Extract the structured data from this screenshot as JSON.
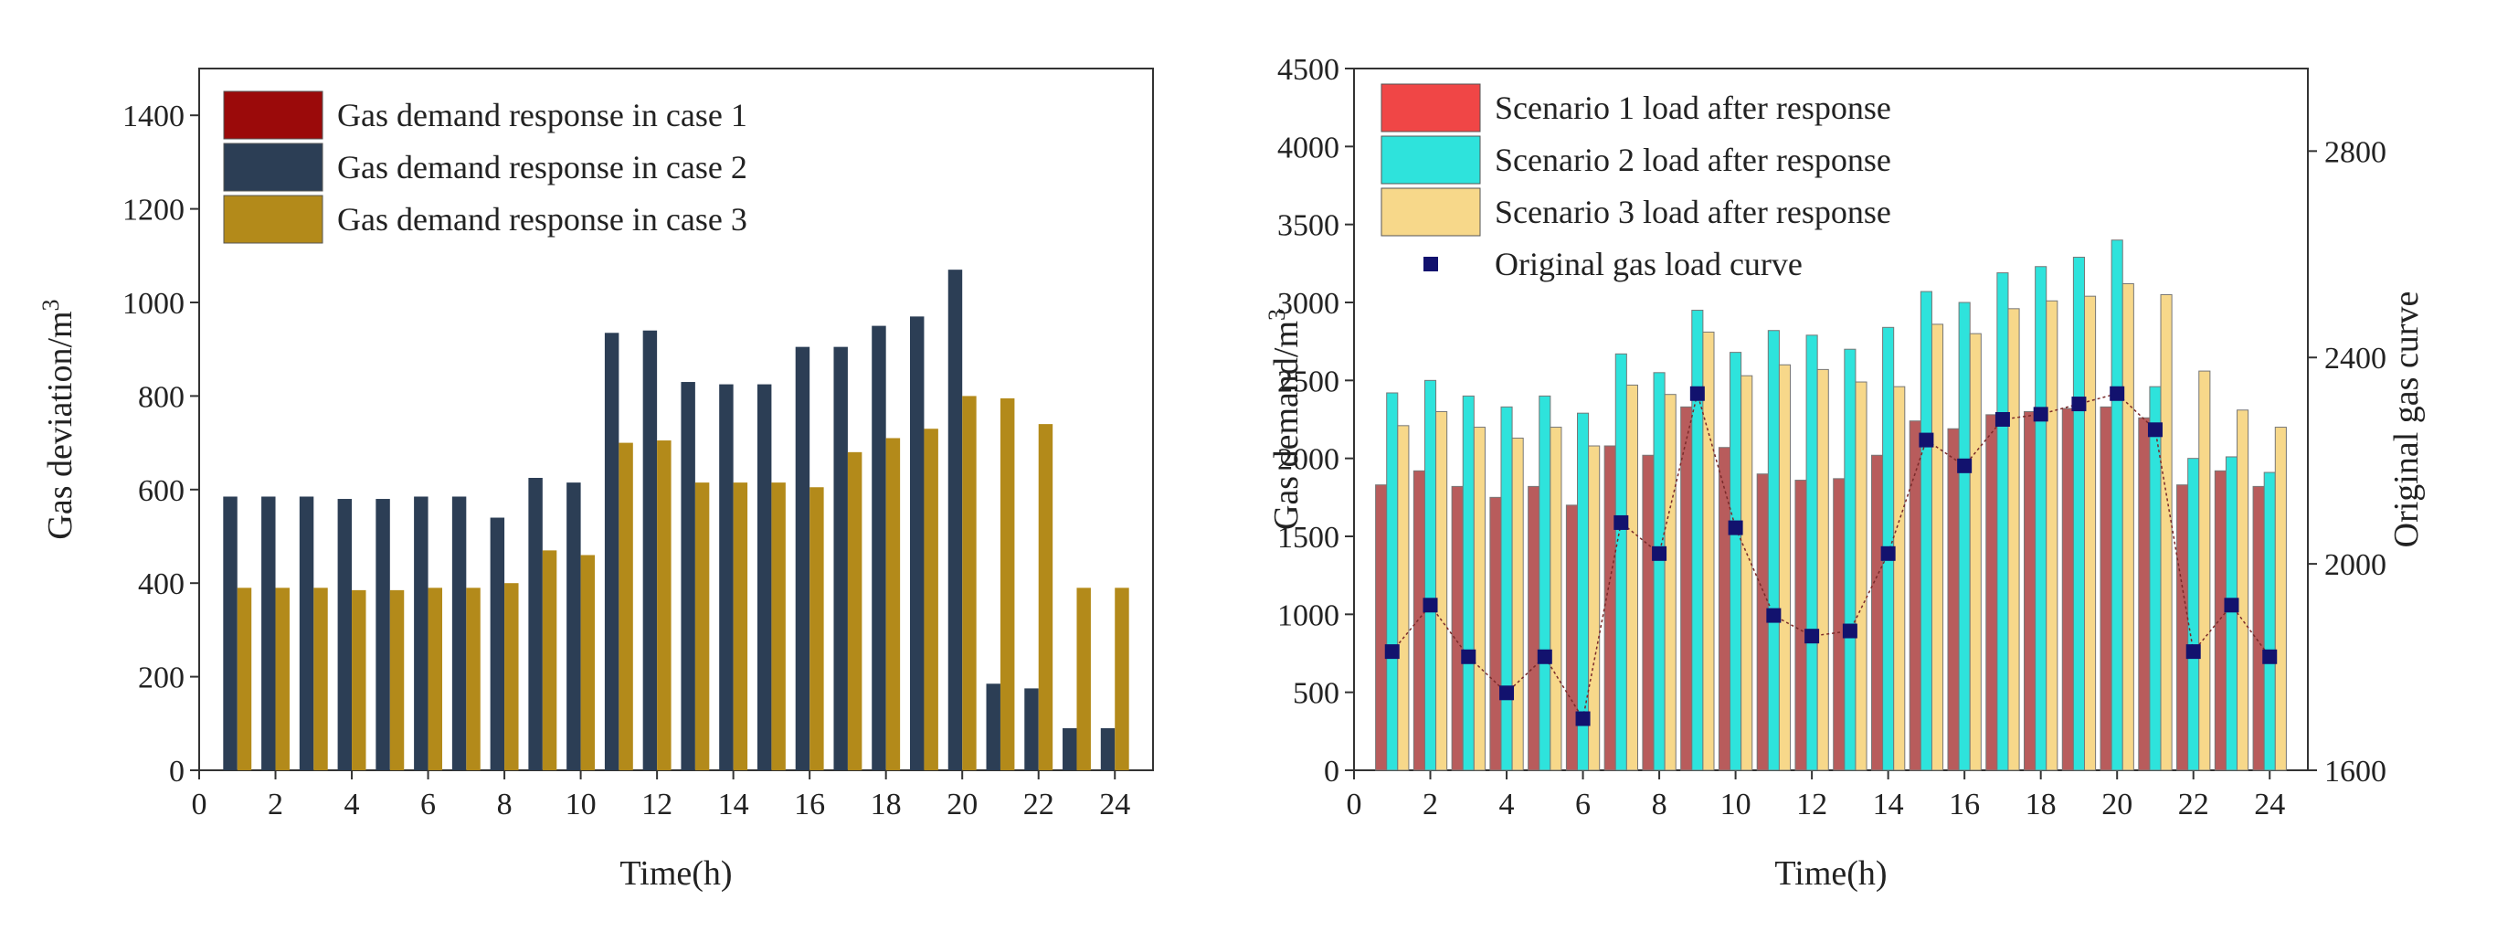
{
  "chart_data": [
    {
      "type": "bar",
      "title": "",
      "xlabel": "Time(h)",
      "ylabel": "Gas deviation/m",
      "ylabel_superscript": "3",
      "xlim": [
        0,
        25
      ],
      "ylim": [
        0,
        1500
      ],
      "x_ticks": [
        "0",
        "2",
        "4",
        "6",
        "8",
        "10",
        "12",
        "14",
        "16",
        "18",
        "20",
        "22",
        "24"
      ],
      "y_ticks": [
        "0",
        "200",
        "400",
        "600",
        "800",
        "1000",
        "1200",
        "1400"
      ],
      "categories": [
        1,
        2,
        3,
        4,
        5,
        6,
        7,
        8,
        9,
        10,
        11,
        12,
        13,
        14,
        15,
        16,
        17,
        18,
        19,
        20,
        21,
        22,
        23,
        24
      ],
      "series": [
        {
          "name": "Gas demand response in case 1",
          "color": "#9b0a0a",
          "values": [
            0,
            0,
            0,
            0,
            0,
            0,
            0,
            0,
            0,
            0,
            0,
            0,
            0,
            0,
            0,
            0,
            0,
            0,
            0,
            0,
            0,
            0,
            0,
            0
          ]
        },
        {
          "name": "Gas demand response in case 2",
          "color": "#2c3e55",
          "values": [
            585,
            585,
            585,
            580,
            580,
            585,
            585,
            540,
            625,
            615,
            935,
            940,
            830,
            825,
            825,
            905,
            905,
            950,
            970,
            1070,
            185,
            175,
            90,
            90
          ]
        },
        {
          "name": "Gas demand response in case 3",
          "color": "#b38a1a",
          "values": [
            390,
            390,
            390,
            385,
            385,
            390,
            390,
            400,
            470,
            460,
            700,
            705,
            615,
            615,
            615,
            605,
            680,
            710,
            730,
            800,
            795,
            740,
            390,
            390
          ]
        }
      ],
      "legend": "top-left"
    },
    {
      "type": "bar",
      "title": "",
      "xlabel": "Time(h)",
      "ylabel": "Gas demand/m",
      "ylabel_superscript": "3",
      "y2label": "Original gas curve",
      "xlim": [
        0,
        25
      ],
      "ylim": [
        0,
        4500
      ],
      "y2lim": [
        1600,
        2960
      ],
      "x_ticks": [
        "0",
        "2",
        "4",
        "6",
        "8",
        "10",
        "12",
        "14",
        "16",
        "18",
        "20",
        "22",
        "24"
      ],
      "y_ticks": [
        "0",
        "500",
        "1000",
        "1500",
        "2000",
        "2500",
        "3000",
        "3500",
        "4000",
        "4500"
      ],
      "y2_ticks": [
        "1600",
        "2000",
        "2400",
        "2800"
      ],
      "categories": [
        1,
        2,
        3,
        4,
        5,
        6,
        7,
        8,
        9,
        10,
        11,
        12,
        13,
        14,
        15,
        16,
        17,
        18,
        19,
        20,
        21,
        22,
        23,
        24
      ],
      "series": [
        {
          "name": "Scenario 1 load after response",
          "color": "#b85c5c",
          "legend_color": "#f04646",
          "values": [
            1830,
            1920,
            1820,
            1750,
            1820,
            1700,
            2080,
            2020,
            2330,
            2070,
            1900,
            1860,
            1870,
            2020,
            2240,
            2190,
            2280,
            2300,
            2320,
            2330,
            2260,
            1830,
            1920,
            1820
          ]
        },
        {
          "name": "Scenario 2 load after response",
          "color": "#2ee3dc",
          "values": [
            2420,
            2500,
            2400,
            2330,
            2400,
            2290,
            2670,
            2550,
            2950,
            2680,
            2820,
            2790,
            2700,
            2840,
            3070,
            3000,
            3190,
            3230,
            3290,
            3400,
            2460,
            2000,
            2010,
            1910
          ]
        },
        {
          "name": "Scenario 3 load after response",
          "color": "#f7d88a",
          "values": [
            2210,
            2300,
            2200,
            2130,
            2200,
            2080,
            2470,
            2410,
            2810,
            2530,
            2600,
            2570,
            2490,
            2460,
            2860,
            2800,
            2960,
            3010,
            3040,
            3120,
            3050,
            2560,
            2310,
            2200
          ]
        },
        {
          "name": "Original gas load curve",
          "color": "#12126e",
          "axis": "right",
          "marker": "square",
          "values": [
            1830,
            1920,
            1820,
            1750,
            1820,
            1700,
            2080,
            2020,
            2330,
            2070,
            1900,
            1860,
            1870,
            2020,
            2240,
            2190,
            2280,
            2290,
            2310,
            2330,
            2260,
            1830,
            1920,
            1820
          ]
        }
      ],
      "legend": "top-left"
    }
  ]
}
